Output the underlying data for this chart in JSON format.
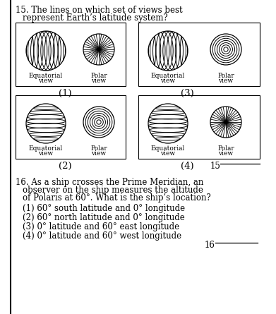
{
  "bg_color": "#ffffff",
  "q16_options": [
    "(1) 60° south latitude and 0° longitude",
    "(2) 60° north latitude and 0° longitude",
    "(3) 0° latitude and 60° east longitude",
    "(4) 0° latitude and 60° west longitude"
  ],
  "font_size_main": 8.5,
  "font_size_label": 6.5,
  "font_size_number": 9.5
}
